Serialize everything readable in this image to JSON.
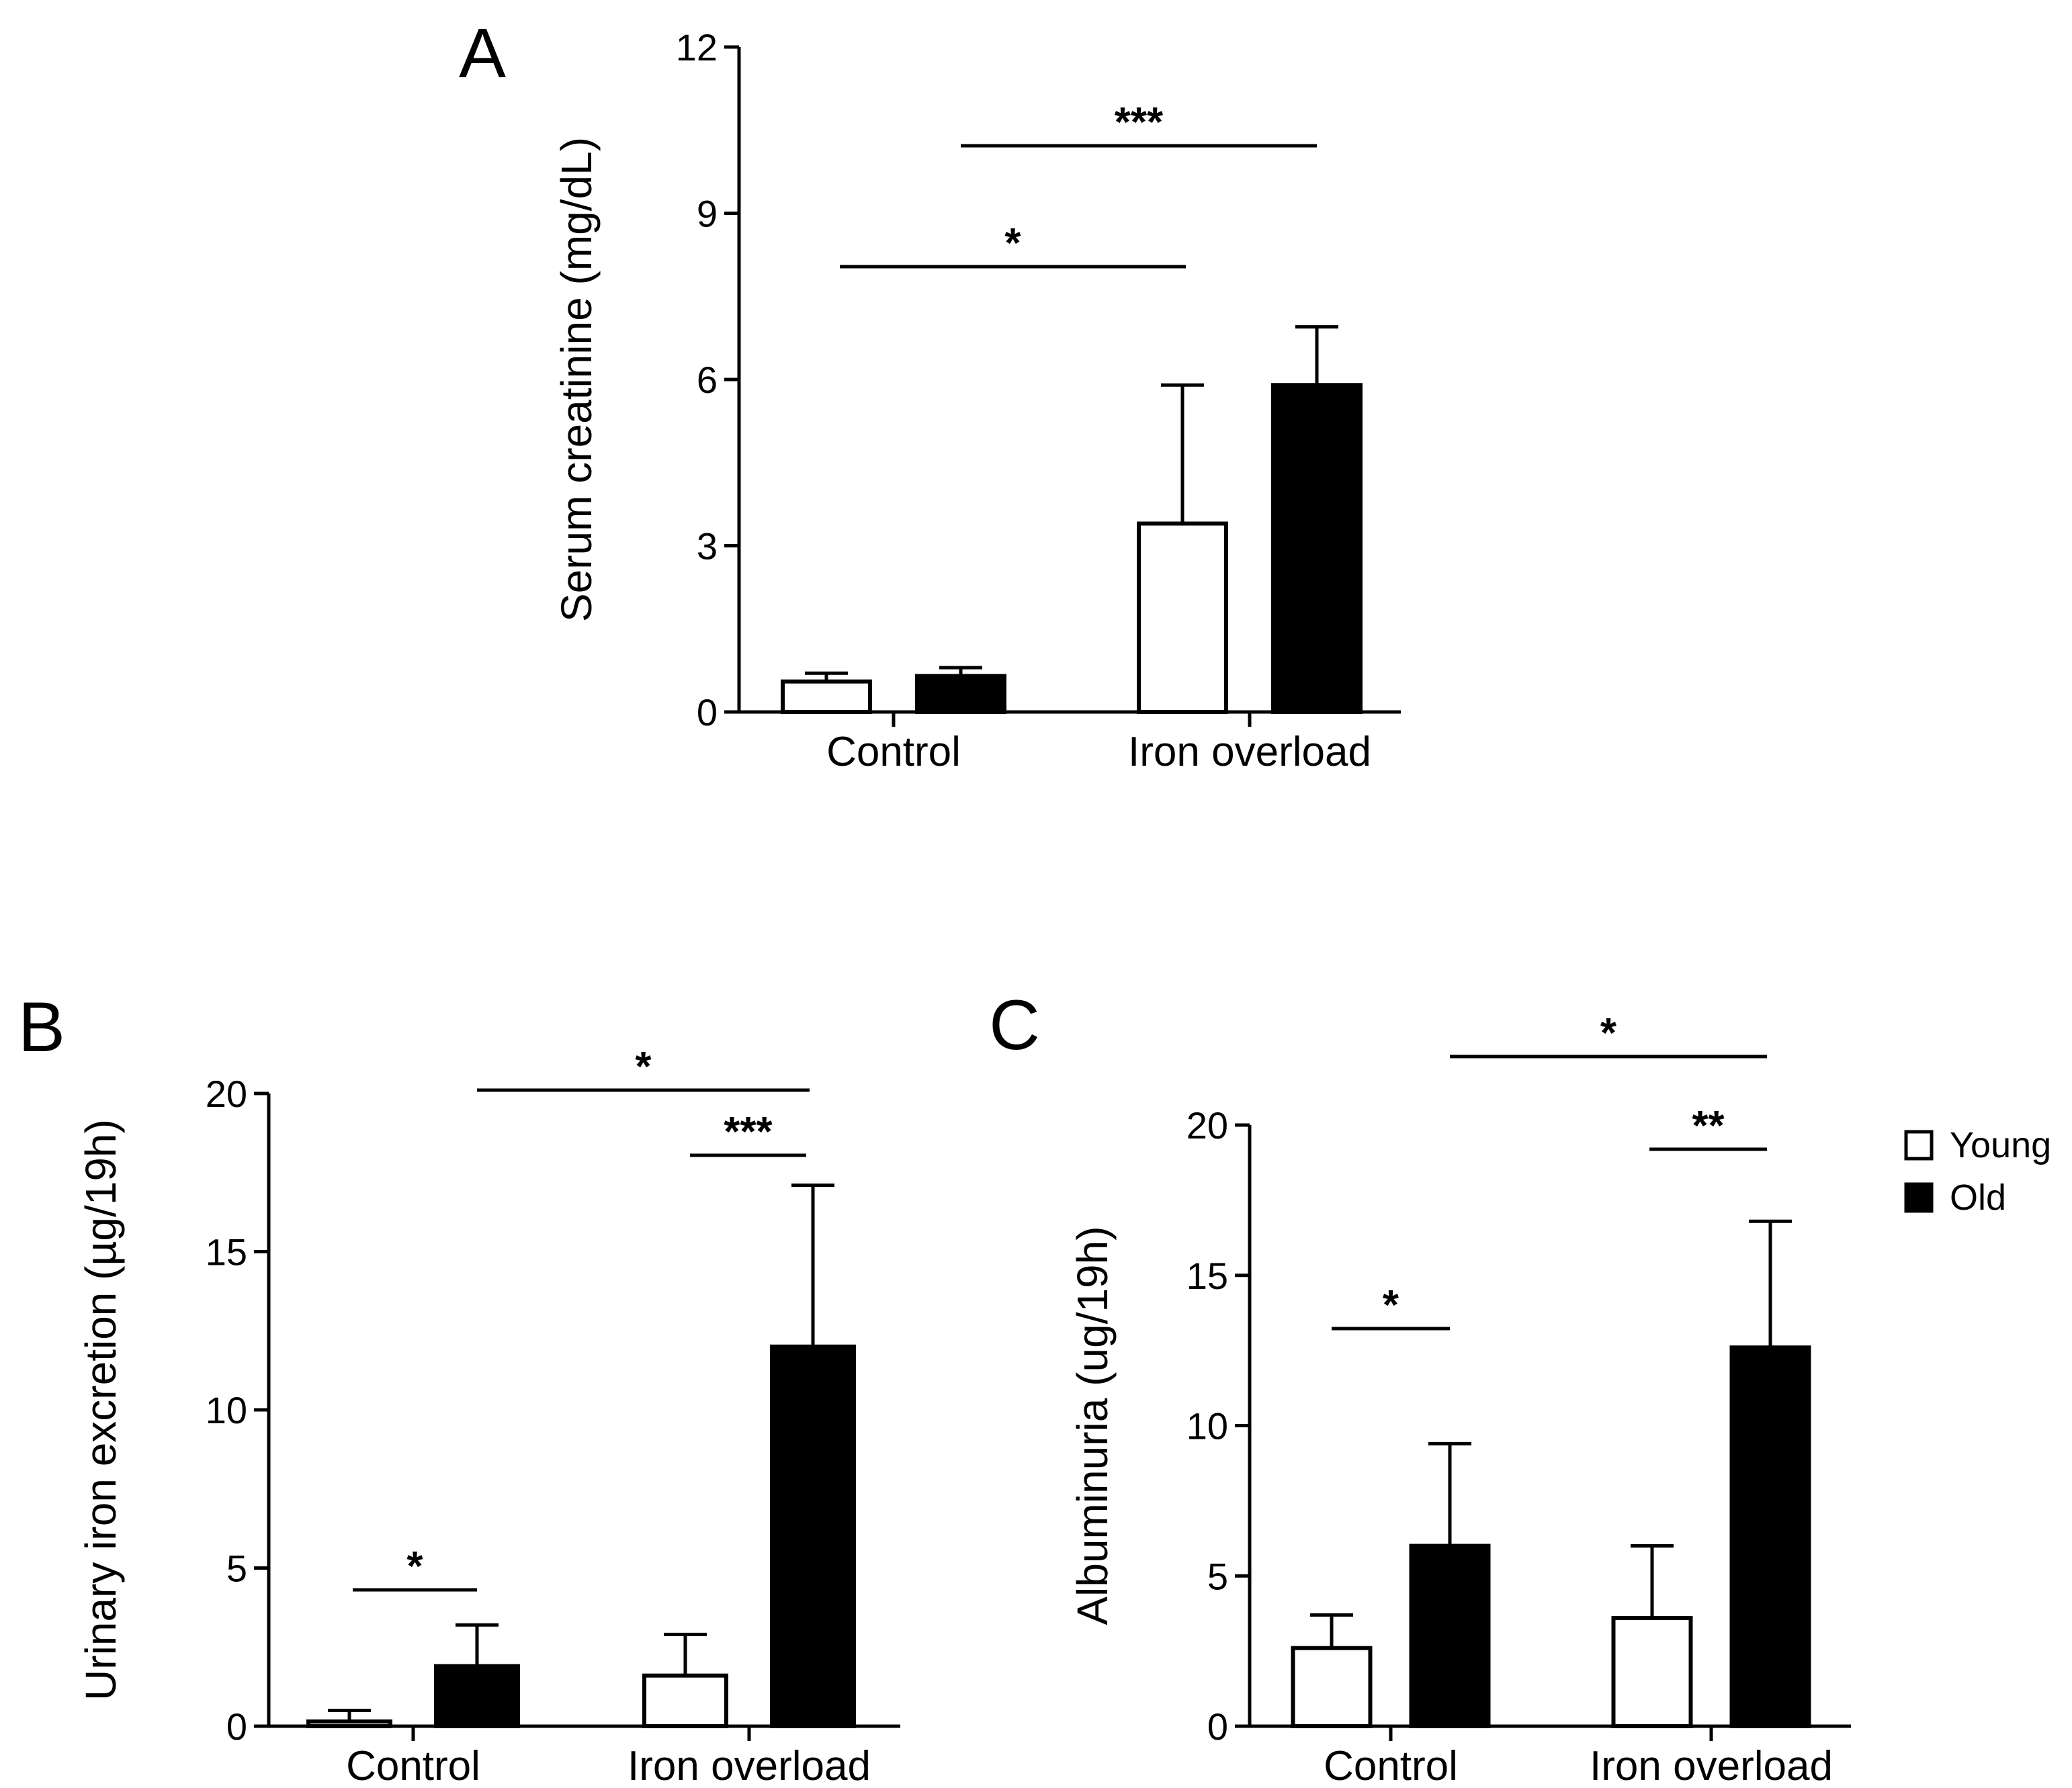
{
  "chart_data": [
    {
      "panel": "A",
      "type": "bar",
      "ylabel": "Serum creatinine (mg/dL)",
      "xlabel": "",
      "ylim": [
        0,
        12
      ],
      "yticks": [
        0,
        3,
        6,
        9,
        12
      ],
      "categories": [
        "Control",
        "Iron overload"
      ],
      "series": [
        {
          "name": "Young",
          "color": "#ffffff",
          "values": [
            0.55,
            3.4
          ],
          "errors": [
            0.15,
            2.5
          ]
        },
        {
          "name": "Old",
          "color": "#000000",
          "values": [
            0.65,
            5.9
          ],
          "errors": [
            0.15,
            1.05
          ]
        }
      ],
      "significance": [
        {
          "label": "***",
          "from": {
            "category": 0,
            "series": 1
          },
          "to": {
            "category": 1,
            "series": 1
          }
        },
        {
          "label": "*",
          "from": {
            "category": 0,
            "series": 0
          },
          "to": {
            "category": 1,
            "series": 0
          }
        }
      ]
    },
    {
      "panel": "B",
      "type": "bar",
      "ylabel": "Urinary iron excretion (µg/19h)",
      "xlabel": "",
      "ylim": [
        0,
        20
      ],
      "yticks": [
        0,
        5,
        10,
        15,
        20
      ],
      "categories": [
        "Control",
        "Iron overload"
      ],
      "series": [
        {
          "name": "Young",
          "color": "#ffffff",
          "values": [
            0.15,
            1.6
          ],
          "errors": [
            0.35,
            1.3
          ]
        },
        {
          "name": "Old",
          "color": "#000000",
          "values": [
            1.9,
            12.0
          ],
          "errors": [
            1.3,
            5.1
          ]
        }
      ],
      "significance": [
        {
          "label": "*",
          "from": {
            "category": 0,
            "series": 0
          },
          "to": {
            "category": 0,
            "series": 1
          }
        },
        {
          "label": "***",
          "from": {
            "category": 1,
            "series": 0
          },
          "to": {
            "category": 1,
            "series": 1
          }
        },
        {
          "label": "*",
          "from": {
            "category": 0,
            "series": 1
          },
          "to": {
            "category": 1,
            "series": 1
          }
        }
      ]
    },
    {
      "panel": "C",
      "type": "bar",
      "ylabel": "Albuminuria (ug/19h)",
      "xlabel": "",
      "ylim": [
        0,
        20
      ],
      "yticks": [
        0,
        5,
        10,
        15,
        20
      ],
      "categories": [
        "Control",
        "Iron overload"
      ],
      "series": [
        {
          "name": "Young",
          "color": "#ffffff",
          "values": [
            2.6,
            3.6
          ],
          "errors": [
            1.1,
            2.4
          ]
        },
        {
          "name": "Old",
          "color": "#000000",
          "values": [
            6.0,
            12.6
          ],
          "errors": [
            3.4,
            4.2
          ]
        }
      ],
      "significance": [
        {
          "label": "*",
          "from": {
            "category": 0,
            "series": 0
          },
          "to": {
            "category": 0,
            "series": 1
          }
        },
        {
          "label": "**",
          "from": {
            "category": 1,
            "series": 0
          },
          "to": {
            "category": 1,
            "series": 1
          }
        },
        {
          "label": "*",
          "from": {
            "category": 0,
            "series": 1
          },
          "to": {
            "category": 1,
            "series": 1
          }
        }
      ]
    }
  ],
  "legend": {
    "items": [
      {
        "label": "Young",
        "color": "#ffffff"
      },
      {
        "label": "Old",
        "color": "#000000"
      }
    ]
  }
}
